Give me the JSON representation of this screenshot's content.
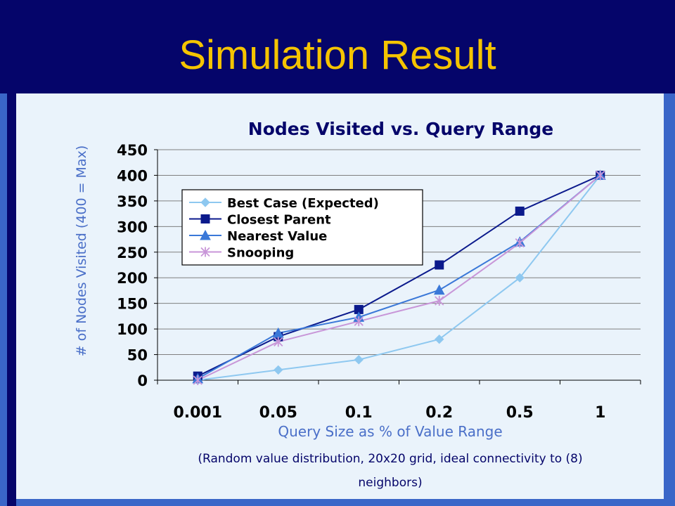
{
  "slide": {
    "title": "Simulation Result",
    "colors": {
      "header": "#05056a",
      "title": "#f5c400",
      "panel": "#eaf3fb",
      "frame": "#3a66c8"
    }
  },
  "chart_data": {
    "type": "line",
    "title": "Nodes Visited vs. Query Range",
    "xlabel": "Query Size as % of Value Range",
    "ylabel": "# of Nodes Visited (400 = Max)",
    "caption_line1": "(Random value distribution, 20x20 grid, ideal connectivity to (8)",
    "caption_line2": "neighbors)",
    "categories": [
      "0.001",
      "0.05",
      "0.1",
      "0.2",
      "0.5",
      "1"
    ],
    "ylim": [
      0,
      450
    ],
    "yticks": [
      "0",
      "50",
      "100",
      "150",
      "200",
      "250",
      "300",
      "350",
      "400",
      "450"
    ],
    "grid": true,
    "legend_position": "top-left",
    "series": [
      {
        "name": "Best Case (Expected)",
        "values": [
          0,
          20,
          40,
          80,
          200,
          400
        ],
        "color": "#8ec8f0",
        "marker": "diamond"
      },
      {
        "name": "Closest Parent",
        "values": [
          8,
          85,
          138,
          225,
          330,
          400
        ],
        "color": "#0b1a8c",
        "marker": "square"
      },
      {
        "name": "Nearest Value",
        "values": [
          3,
          92,
          123,
          176,
          270,
          400
        ],
        "color": "#3a78d8",
        "marker": "triangle"
      },
      {
        "name": "Snooping",
        "values": [
          0,
          75,
          115,
          155,
          268,
          400
        ],
        "color": "#c896d8",
        "marker": "star"
      }
    ]
  }
}
